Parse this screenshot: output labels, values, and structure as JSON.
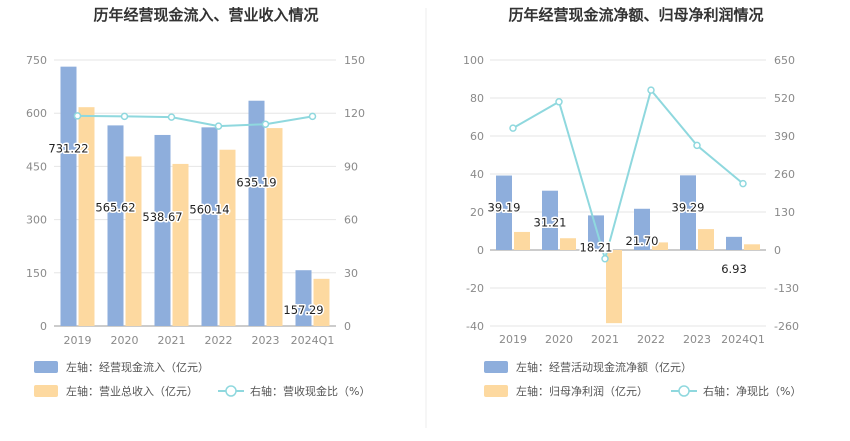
{
  "chart_data": [
    {
      "type": "bar",
      "title": "历年经营现金流入、营业收入情况",
      "categories": [
        "2019",
        "2020",
        "2021",
        "2022",
        "2023",
        "2024Q1"
      ],
      "left_axis": {
        "min": 0,
        "max": 750,
        "ticks": [
          "0",
          "150",
          "300",
          "450",
          "600",
          "750"
        ]
      },
      "right_axis": {
        "min": 0,
        "max": 150,
        "ticks": [
          "0",
          "30",
          "60",
          "90",
          "120",
          "150"
        ]
      },
      "grid": true,
      "legend_position": "bottom-left",
      "series": [
        {
          "name": "左轴：经营现金流入（亿元）",
          "kind": "bar",
          "axis": "left",
          "color": "#8eaedc",
          "values": [
            731.22,
            565.62,
            538.67,
            560.14,
            635.19,
            157.29
          ],
          "data_labels": [
            "731.22",
            "565.62",
            "538.67",
            "560.14",
            "635.19",
            "157.29"
          ]
        },
        {
          "name": "左轴：营业总收入（亿元）",
          "kind": "bar",
          "axis": "left",
          "color": "#fdd9a0",
          "values": [
            617,
            478,
            457,
            497,
            558,
            133
          ]
        },
        {
          "name": "右轴：营收现金比（%）",
          "kind": "line",
          "axis": "right",
          "color": "#8fd8de",
          "values": [
            118.5,
            118.2,
            117.8,
            112.7,
            113.8,
            118.2
          ]
        }
      ]
    },
    {
      "type": "bar",
      "title": "历年经营现金流净额、归母净利润情况",
      "categories": [
        "2019",
        "2020",
        "2021",
        "2022",
        "2023",
        "2024Q1"
      ],
      "left_axis": {
        "min": -40,
        "max": 100,
        "ticks": [
          "-40",
          "-20",
          "0",
          "20",
          "40",
          "60",
          "80",
          "100"
        ]
      },
      "right_axis": {
        "min": -260,
        "max": 650,
        "ticks": [
          "-260",
          "-130",
          "0",
          "130",
          "260",
          "390",
          "520",
          "650"
        ]
      },
      "grid": true,
      "legend_position": "bottom-left",
      "series": [
        {
          "name": "左轴：经营活动现金流净额（亿元）",
          "kind": "bar",
          "axis": "left",
          "color": "#8eaedc",
          "values": [
            39.19,
            31.21,
            18.21,
            21.7,
            39.29,
            6.93
          ],
          "data_labels": [
            "39.19",
            "31.21",
            "18.21",
            "21.70",
            "39.29",
            "6.93"
          ]
        },
        {
          "name": "左轴：归母净利润（亿元）",
          "kind": "bar",
          "axis": "left",
          "color": "#fdd9a0",
          "values": [
            9.5,
            6.2,
            -38.5,
            4.0,
            11.0,
            3.0
          ]
        },
        {
          "name": "右轴：净现比（%）",
          "kind": "line",
          "axis": "right",
          "color": "#8fd8de",
          "values": [
            417,
            507,
            -30,
            547,
            358,
            227
          ]
        }
      ]
    }
  ]
}
